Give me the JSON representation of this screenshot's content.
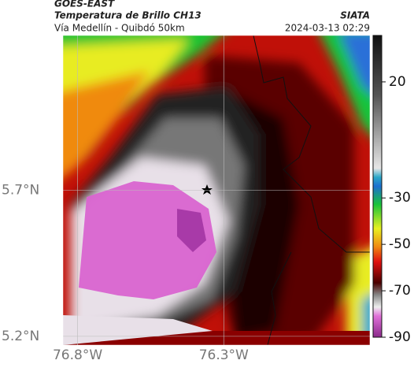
{
  "header": {
    "source": "GOES-EAST",
    "title": "Temperatura de Brillo CH13",
    "subtitle": "Vía Medellín - Quibdó 50km",
    "org": "SIATA",
    "datetime": "2024-03-13 02:29"
  },
  "map": {
    "latlim": [
      5.17,
      6.23
    ],
    "lonlim": [
      -76.85,
      -75.8
    ],
    "lat_ticks": [
      {
        "value": 5.7,
        "label": "5.7°N"
      },
      {
        "value": 5.2,
        "label": "5.2°N"
      }
    ],
    "lon_ticks": [
      {
        "value": -76.8,
        "label": "76.8°W"
      },
      {
        "value": -76.3,
        "label": "76.3°W"
      }
    ]
  },
  "colorbar": {
    "lim": [
      40,
      -90
    ],
    "ticks": [
      20,
      -30,
      -50,
      -70,
      -90
    ]
  }
}
